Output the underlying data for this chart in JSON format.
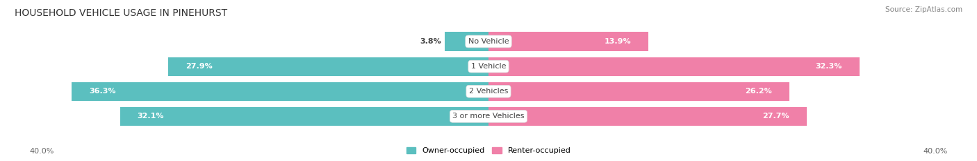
{
  "title": "HOUSEHOLD VEHICLE USAGE IN PINEHURST",
  "source": "Source: ZipAtlas.com",
  "categories": [
    "No Vehicle",
    "1 Vehicle",
    "2 Vehicles",
    "3 or more Vehicles"
  ],
  "owner_values": [
    3.8,
    27.9,
    36.3,
    32.1
  ],
  "renter_values": [
    13.9,
    32.3,
    26.2,
    27.7
  ],
  "owner_color": "#5BBFBF",
  "renter_color": "#F080A8",
  "bar_bg_color": "#F0F0F0",
  "max_val": 40.0,
  "title_fontsize": 10,
  "source_fontsize": 7.5,
  "bar_label_fontsize": 8,
  "category_fontsize": 8,
  "axis_tick_fontsize": 8,
  "legend_fontsize": 8
}
